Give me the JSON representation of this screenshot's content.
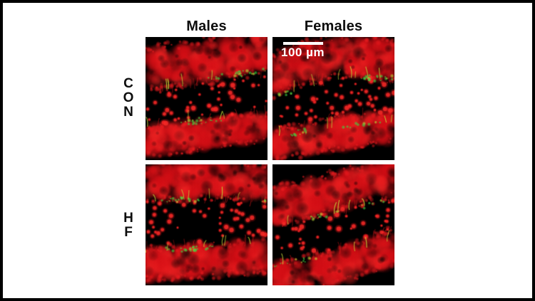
{
  "figure": {
    "column_headers": [
      {
        "id": "males",
        "label": "Males"
      },
      {
        "id": "females",
        "label": "Females"
      }
    ],
    "row_labels": [
      {
        "id": "con",
        "label": "CON",
        "stacked": "C\nO\nN"
      },
      {
        "id": "hf",
        "label": "HF",
        "stacked": "H\nF"
      }
    ],
    "scale_bar": {
      "label": "100 µm",
      "bar_color": "#ffffff"
    },
    "panels": [
      {
        "id": "males-con",
        "column": "Males",
        "row": "CON"
      },
      {
        "id": "females-con",
        "column": "Females",
        "row": "CON"
      },
      {
        "id": "males-hf",
        "column": "Males",
        "row": "HF"
      },
      {
        "id": "females-hf",
        "column": "Females",
        "row": "HF"
      }
    ],
    "colors": {
      "stain_red": "#e01018",
      "stain_green": "#40d240",
      "stain_yellow_green": "#c2d438",
      "micrograph_background": "#000000",
      "frame": "#000000",
      "page_background": "#ffffff",
      "text": "#0d0d0d"
    }
  }
}
